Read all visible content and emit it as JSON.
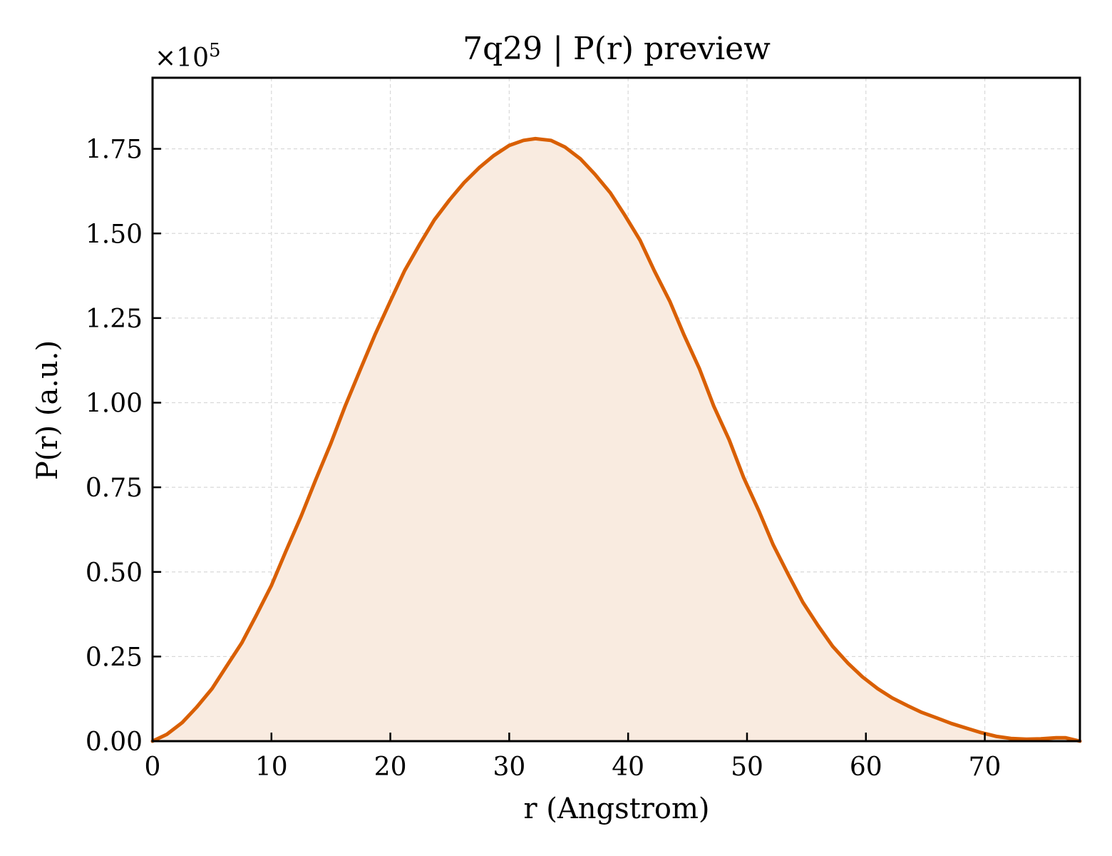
{
  "chart_data": {
    "type": "area",
    "title": "7q29 | P(r) preview",
    "xlabel": "r (Angstrom)",
    "ylabel": "P(r) (a.u.)",
    "y_offset_text": "×10",
    "y_offset_exponent": "5",
    "xlim": [
      0,
      78
    ],
    "ylim": [
      0,
      1.96
    ],
    "y_scale_multiplier": 100000,
    "grid": true,
    "legend": "none",
    "colors": {
      "line": "#d95f02",
      "fill": "#f9ebe0",
      "grid": "#d9d9d9",
      "axes": "#000000"
    },
    "x_ticks": [
      0,
      10,
      20,
      30,
      40,
      50,
      60,
      70
    ],
    "x_tick_labels": [
      "0",
      "10",
      "20",
      "30",
      "40",
      "50",
      "60",
      "70"
    ],
    "y_ticks": [
      0,
      0.25,
      0.5,
      0.75,
      1.0,
      1.25,
      1.5,
      1.75
    ],
    "y_tick_labels": [
      "0.00",
      "0.25",
      "0.50",
      "0.75",
      "1.00",
      "1.25",
      "1.50",
      "1.75"
    ],
    "series": [
      {
        "x": [
          0,
          1.2,
          2.5,
          3.7,
          5.0,
          6.2,
          7.5,
          8.7,
          10.0,
          11.2,
          12.5,
          13.7,
          15.0,
          16.2,
          17.5,
          18.7,
          20.0,
          21.2,
          22.5,
          23.7,
          25.0,
          26.2,
          27.5,
          28.7,
          30.0,
          31.2,
          32.2,
          33.5,
          34.7,
          36.0,
          37.2,
          38.5,
          39.7,
          41.0,
          42.2,
          43.5,
          44.7,
          46.0,
          47.2,
          48.5,
          49.7,
          51.0,
          52.2,
          53.5,
          54.7,
          56.0,
          57.2,
          58.5,
          59.7,
          61.0,
          62.2,
          63.5,
          64.7,
          66.0,
          67.2,
          68.5,
          69.7,
          71.0,
          72.2,
          73.5,
          74.7,
          76.0,
          76.8,
          78.0
        ],
        "y": [
          0.0,
          0.02,
          0.055,
          0.1,
          0.155,
          0.22,
          0.29,
          0.37,
          0.46,
          0.56,
          0.665,
          0.77,
          0.88,
          0.99,
          1.1,
          1.2,
          1.3,
          1.39,
          1.47,
          1.54,
          1.6,
          1.65,
          1.695,
          1.73,
          1.76,
          1.775,
          1.78,
          1.775,
          1.755,
          1.72,
          1.675,
          1.62,
          1.555,
          1.48,
          1.39,
          1.3,
          1.2,
          1.1,
          0.99,
          0.89,
          0.78,
          0.68,
          0.58,
          0.49,
          0.41,
          0.34,
          0.28,
          0.23,
          0.19,
          0.155,
          0.128,
          0.105,
          0.085,
          0.068,
          0.052,
          0.038,
          0.025,
          0.014,
          0.008,
          0.006,
          0.007,
          0.01,
          0.01,
          0.0
        ]
      }
    ]
  }
}
